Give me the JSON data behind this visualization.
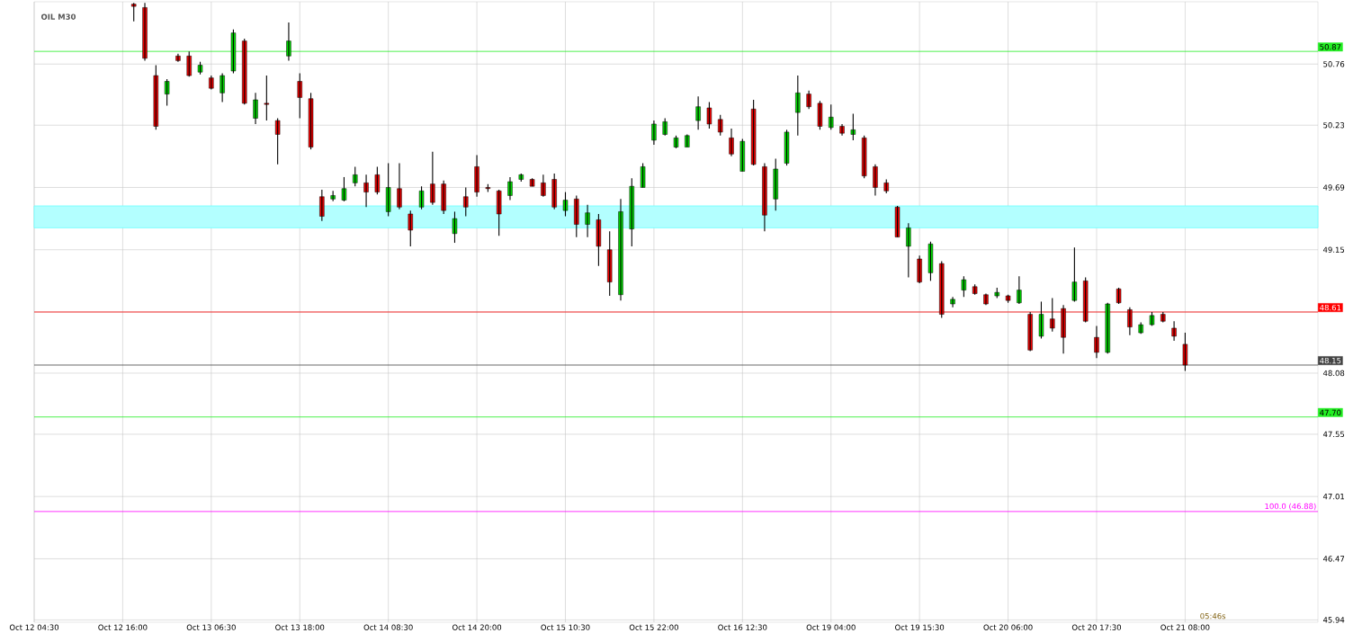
{
  "chart_data": {
    "type": "candlestick",
    "title": "OIL M30",
    "categories": [
      "Oct 12 04:30",
      null,
      null,
      null,
      null,
      null,
      null,
      null,
      "Oct 12 16:00",
      null,
      null,
      null,
      null,
      null,
      null,
      null,
      "Oct 13 06:30",
      null,
      null,
      null,
      null,
      null,
      null,
      null,
      "Oct 13 18:00",
      null,
      null,
      null,
      null,
      null,
      null,
      null,
      "Oct 14 08:30",
      null,
      null,
      null,
      null,
      null,
      null,
      null,
      "Oct 14 20:00",
      null,
      null,
      null,
      null,
      null,
      null,
      null,
      "Oct 15 10:30",
      null,
      null,
      null,
      null,
      null,
      null,
      null,
      "Oct 15 22:00",
      null,
      null,
      null,
      null,
      null,
      null,
      null,
      "Oct 16 12:30",
      null,
      null,
      null,
      null,
      null,
      null,
      null,
      "Oct 19 04:00",
      null,
      null,
      null,
      null,
      null,
      null,
      null,
      "Oct 19 15:30",
      null,
      null,
      null,
      null,
      null,
      null,
      null,
      "Oct 20 06:00",
      null,
      null,
      null,
      null,
      null,
      null,
      null,
      "Oct 20 17:30",
      null,
      null,
      null,
      null,
      null,
      null,
      null,
      "Oct 21 08:00",
      null,
      null,
      null,
      null,
      null,
      null,
      null,
      null,
      null,
      null,
      null,
      null
    ],
    "ohlc": [
      null,
      null,
      null,
      null,
      null,
      null,
      null,
      null,
      null,
      [
        51.28,
        51.29,
        51.13,
        51.26
      ],
      [
        51.25,
        51.29,
        50.79,
        50.81
      ],
      [
        50.66,
        50.75,
        50.19,
        50.22
      ],
      [
        50.5,
        50.63,
        50.4,
        50.61
      ],
      [
        50.83,
        50.85,
        50.78,
        50.79
      ],
      [
        50.83,
        50.87,
        50.65,
        50.66
      ],
      [
        50.69,
        50.78,
        50.67,
        50.75
      ],
      [
        50.64,
        50.66,
        50.54,
        50.55
      ],
      [
        50.51,
        50.68,
        50.43,
        50.66
      ],
      [
        50.7,
        51.06,
        50.68,
        51.03
      ],
      [
        50.96,
        50.98,
        50.41,
        50.42
      ],
      [
        50.29,
        50.51,
        50.24,
        50.45
      ],
      [
        50.42,
        50.66,
        50.27,
        50.41
      ],
      [
        50.27,
        50.29,
        49.89,
        50.15
      ],
      [
        50.83,
        51.12,
        50.79,
        50.96
      ],
      [
        50.61,
        50.68,
        50.29,
        50.47
      ],
      [
        50.46,
        50.51,
        50.02,
        50.04
      ],
      [
        49.61,
        49.67,
        49.4,
        49.44
      ],
      [
        49.59,
        49.66,
        49.57,
        49.62
      ],
      [
        49.58,
        49.78,
        49.57,
        49.68
      ],
      [
        49.73,
        49.87,
        49.7,
        49.8
      ],
      [
        49.73,
        49.8,
        49.52,
        49.65
      ],
      [
        49.8,
        49.87,
        49.63,
        49.65
      ],
      [
        49.48,
        49.9,
        49.44,
        49.69
      ],
      [
        49.68,
        49.9,
        49.5,
        49.52
      ],
      [
        49.46,
        49.49,
        49.18,
        49.32
      ],
      [
        49.52,
        49.7,
        49.5,
        49.66
      ],
      [
        49.72,
        50.0,
        49.54,
        49.56
      ],
      [
        49.72,
        49.75,
        49.46,
        49.49
      ],
      [
        49.29,
        49.48,
        49.21,
        49.42
      ],
      [
        49.61,
        49.69,
        49.44,
        49.52
      ],
      [
        49.87,
        49.97,
        49.61,
        49.65
      ],
      [
        49.69,
        49.72,
        49.65,
        49.68
      ],
      [
        49.66,
        49.67,
        49.27,
        49.46
      ],
      [
        49.62,
        49.78,
        49.58,
        49.74
      ],
      [
        49.76,
        49.81,
        49.74,
        49.8
      ],
      [
        49.76,
        49.77,
        49.7,
        49.7
      ],
      [
        49.73,
        49.8,
        49.61,
        49.62
      ],
      [
        49.76,
        49.81,
        49.5,
        49.52
      ],
      [
        49.49,
        49.65,
        49.44,
        49.58
      ],
      [
        49.59,
        49.62,
        49.26,
        49.37
      ],
      [
        49.37,
        49.54,
        49.26,
        49.47
      ],
      [
        49.41,
        49.46,
        49.01,
        49.18
      ],
      [
        49.15,
        49.31,
        48.75,
        48.87
      ],
      [
        48.76,
        49.59,
        48.71,
        49.48
      ],
      [
        49.33,
        49.77,
        49.18,
        49.7
      ],
      [
        49.69,
        49.9,
        49.69,
        49.87
      ],
      [
        50.1,
        50.27,
        50.06,
        50.24
      ],
      [
        50.15,
        50.29,
        50.14,
        50.26
      ],
      [
        50.04,
        50.14,
        50.03,
        50.12
      ],
      [
        50.04,
        50.15,
        50.04,
        50.14
      ],
      [
        50.27,
        50.48,
        50.19,
        50.39
      ],
      [
        50.38,
        50.43,
        50.2,
        50.24
      ],
      [
        50.28,
        50.32,
        50.14,
        50.17
      ],
      [
        50.12,
        50.2,
        49.96,
        49.98
      ],
      [
        49.83,
        50.11,
        49.83,
        50.09
      ],
      [
        50.37,
        50.45,
        49.88,
        49.89
      ],
      [
        49.87,
        49.9,
        49.31,
        49.45
      ],
      [
        49.59,
        49.94,
        49.49,
        49.85
      ],
      [
        49.9,
        50.19,
        49.88,
        50.17
      ],
      [
        50.34,
        50.66,
        50.14,
        50.51
      ],
      [
        50.5,
        50.53,
        50.37,
        50.39
      ],
      [
        50.42,
        50.44,
        50.19,
        50.22
      ],
      [
        50.21,
        50.41,
        50.19,
        50.3
      ],
      [
        50.22,
        50.24,
        50.14,
        50.16
      ],
      [
        50.15,
        50.33,
        50.1,
        50.19
      ],
      [
        50.12,
        50.14,
        49.77,
        49.79
      ],
      [
        49.87,
        49.89,
        49.62,
        49.69
      ],
      [
        49.73,
        49.76,
        49.64,
        49.66
      ],
      [
        49.52,
        49.53,
        49.26,
        49.26
      ],
      [
        49.18,
        49.38,
        48.91,
        49.34
      ],
      [
        49.07,
        49.1,
        48.86,
        48.87
      ],
      [
        48.95,
        49.22,
        48.88,
        49.2
      ],
      [
        49.03,
        49.05,
        48.56,
        48.59
      ],
      [
        48.68,
        48.74,
        48.65,
        48.72
      ],
      [
        48.8,
        48.92,
        48.74,
        48.89
      ],
      [
        48.83,
        48.85,
        48.76,
        48.77
      ],
      [
        48.76,
        48.77,
        48.67,
        48.68
      ],
      [
        48.75,
        48.82,
        48.73,
        48.78
      ],
      [
        48.75,
        48.76,
        48.69,
        48.71
      ],
      [
        48.69,
        48.92,
        48.68,
        48.8
      ],
      [
        48.59,
        48.61,
        48.27,
        48.28
      ],
      [
        48.4,
        48.7,
        48.38,
        48.59
      ],
      [
        48.55,
        48.73,
        48.44,
        48.47
      ],
      [
        48.64,
        48.67,
        48.25,
        48.39
      ],
      [
        48.71,
        49.17,
        48.7,
        48.87
      ],
      [
        48.88,
        48.91,
        48.52,
        48.53
      ],
      [
        48.39,
        48.49,
        48.21,
        48.26
      ],
      [
        48.26,
        48.69,
        48.25,
        48.68
      ],
      [
        48.81,
        48.82,
        48.68,
        48.69
      ],
      [
        48.63,
        48.65,
        48.41,
        48.48
      ],
      [
        48.43,
        48.52,
        48.42,
        48.5
      ],
      [
        48.5,
        48.61,
        48.49,
        48.58
      ],
      [
        48.59,
        48.61,
        48.52,
        48.53
      ],
      [
        48.47,
        48.53,
        48.36,
        48.4
      ],
      [
        48.33,
        48.43,
        48.1,
        48.15
      ],
      null,
      null,
      null,
      null,
      null,
      null,
      null,
      null,
      null,
      null,
      null,
      null
    ],
    "ylim": [
      45.92,
      51.3
    ],
    "yticks": [
      45.94,
      46.47,
      47.01,
      47.55,
      48.08,
      {
        "value": 48.61,
        "label": null
      },
      49.15,
      49.69,
      50.23,
      50.76
    ],
    "grid": true,
    "ref_lines": [
      {
        "axis": "y",
        "value": 50.87,
        "label": "50.87",
        "color": "#22ee22"
      },
      {
        "axis": "y",
        "value": 48.61,
        "label": "48.61",
        "color": "#ff0000"
      },
      {
        "axis": "y",
        "value": 48.15,
        "label": "48.15",
        "color": "#444444"
      },
      {
        "axis": "y",
        "value": 47.7,
        "label": "47.70",
        "color": "#22ee22"
      },
      {
        "axis": "y",
        "value": 46.88,
        "color": "#ff00ff"
      }
    ],
    "bands": [
      {
        "axis": "y",
        "from": 49.34,
        "to": 49.53,
        "color": "#b3ffff"
      }
    ],
    "annotations": [
      "05:46s",
      {
        "text": "100.0 (46.88)",
        "y": 46.88
      }
    ]
  }
}
